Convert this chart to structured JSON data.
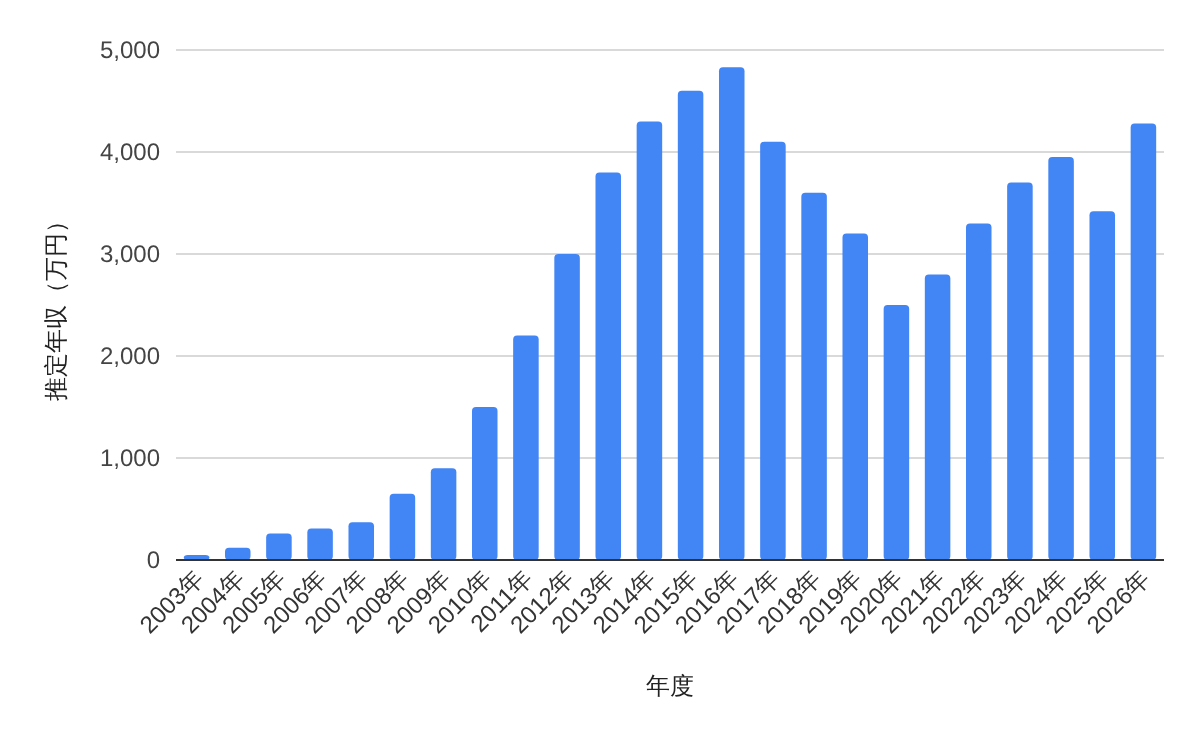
{
  "chart_data": {
    "type": "bar",
    "xlabel": "年度",
    "ylabel": "推定年収（万円）",
    "categories": [
      "2003年",
      "2004年",
      "2005年",
      "2006年",
      "2007年",
      "2008年",
      "2009年",
      "2010年",
      "2011年",
      "2012年",
      "2013年",
      "2014年",
      "2015年",
      "2016年",
      "2017年",
      "2018年",
      "2019年",
      "2020年",
      "2021年",
      "2022年",
      "2023年",
      "2024年",
      "2025年",
      "2026年"
    ],
    "series": [
      {
        "color": "#4285f4",
        "values": [
          50,
          120,
          260,
          310,
          370,
          650,
          900,
          1500,
          2200,
          3000,
          3800,
          4300,
          4600,
          4830,
          4100,
          3600,
          3200,
          2500,
          2800,
          3300,
          3700,
          3950,
          3420,
          4280
        ]
      }
    ],
    "ylim": [
      0,
      5000
    ],
    "yticks": [
      {
        "value": 0,
        "label": "0"
      },
      {
        "value": 1000,
        "label": "1,000"
      },
      {
        "value": 2000,
        "label": "2,000"
      },
      {
        "value": 3000,
        "label": "3,000"
      },
      {
        "value": 4000,
        "label": "4,000"
      },
      {
        "value": 5000,
        "label": "5,000"
      }
    ],
    "grid": "y"
  }
}
